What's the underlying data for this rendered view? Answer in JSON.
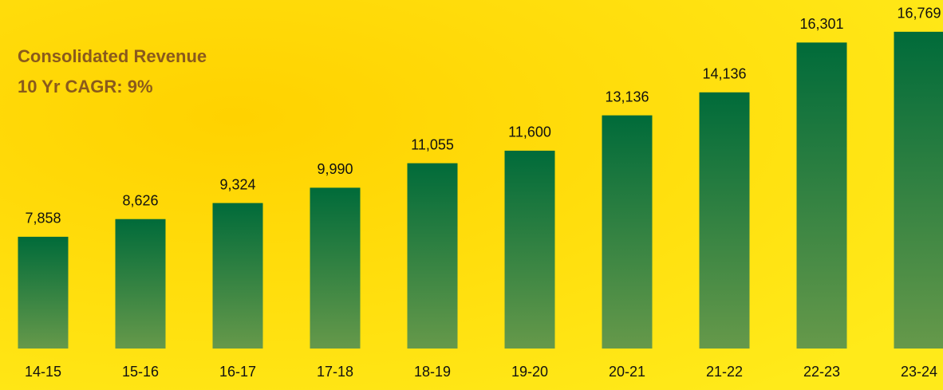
{
  "chart_data": {
    "type": "bar",
    "title": "Consolidated Revenue",
    "subtitle": "10 Yr CAGR: 9%",
    "categories": [
      "14-15",
      "15-16",
      "16-17",
      "17-18",
      "18-19",
      "19-20",
      "20-21",
      "21-22",
      "22-23",
      "23-24"
    ],
    "values": [
      7858,
      8626,
      9324,
      9990,
      11055,
      11600,
      13136,
      14136,
      16301,
      16769
    ],
    "value_labels": [
      "7,858",
      "8,626",
      "9,324",
      "9,990",
      "11,055",
      "11,600",
      "13,136",
      "14,136",
      "16,301",
      "16,769"
    ],
    "color": "#006b3a",
    "ylim": [
      3000,
      18150
    ],
    "grid": false
  }
}
